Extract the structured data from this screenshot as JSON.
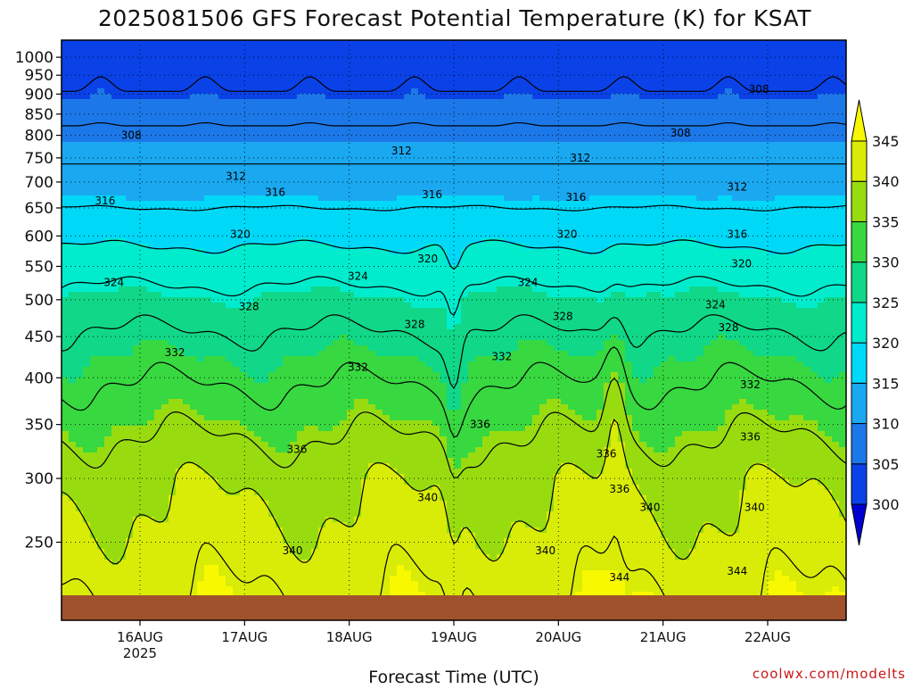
{
  "chart_data": {
    "type": "heatmap",
    "title": "2025081506 GFS Forecast Potential Temperature (K) for KSAT",
    "xlabel": "Forecast Time (UTC)",
    "ylabel": "",
    "watermark": "coolwx.com/modelts",
    "x_ticks": [
      {
        "label": "16AUG",
        "sublabel": "2025",
        "value": 18
      },
      {
        "label": "17AUG",
        "sublabel": "",
        "value": 42
      },
      {
        "label": "18AUG",
        "sublabel": "",
        "value": 66
      },
      {
        "label": "19AUG",
        "sublabel": "",
        "value": 90
      },
      {
        "label": "20AUG",
        "sublabel": "",
        "value": 114
      },
      {
        "label": "21AUG",
        "sublabel": "",
        "value": 138
      },
      {
        "label": "22AUG",
        "sublabel": "",
        "value": 162
      }
    ],
    "xlim": [
      0,
      180
    ],
    "y_axis": {
      "scale": "log",
      "reversed": true,
      "units": "hPa",
      "range": [
        1050,
        200
      ]
    },
    "y_ticks": [
      250,
      300,
      350,
      400,
      450,
      500,
      550,
      600,
      650,
      700,
      750,
      800,
      850,
      900,
      950,
      1000
    ],
    "grid": true,
    "colorbar": {
      "levels": [
        300,
        305,
        310,
        315,
        320,
        325,
        330,
        335,
        340,
        345
      ],
      "colors": [
        "#0000d0",
        "#0a42e8",
        "#1c78e8",
        "#1aa8f0",
        "#00d8f8",
        "#00eccc",
        "#10d888",
        "#38d840",
        "#98dc10",
        "#d8ec08",
        "#f8f800"
      ],
      "extend": "both"
    },
    "ground_color": "#a0522d",
    "profile": {
      "pressure": [
        1000,
        950,
        900,
        850,
        800,
        750,
        700,
        650,
        600,
        550,
        500,
        450,
        400,
        350,
        300,
        250,
        200
      ],
      "theta": [
        304,
        305,
        306,
        307.5,
        309.5,
        311.5,
        313.5,
        316,
        319,
        322,
        325.5,
        328.5,
        331.5,
        335,
        339,
        341.5,
        345
      ]
    },
    "contour_levels": [
      304,
      308,
      312,
      316,
      320,
      324,
      328,
      332,
      336,
      340,
      344
    ],
    "contour_labels": [
      {
        "text": "344",
        "t": 128,
        "p": 226
      },
      {
        "text": "344",
        "t": 155,
        "p": 230
      },
      {
        "text": "340",
        "t": 53,
        "p": 244
      },
      {
        "text": "340",
        "t": 111,
        "p": 244
      },
      {
        "text": "340",
        "t": 84,
        "p": 284
      },
      {
        "text": "340",
        "t": 135,
        "p": 276
      },
      {
        "text": "340",
        "t": 159,
        "p": 276
      },
      {
        "text": "336",
        "t": 128,
        "p": 291
      },
      {
        "text": "336",
        "t": 54,
        "p": 326
      },
      {
        "text": "336",
        "t": 125,
        "p": 322
      },
      {
        "text": "336",
        "t": 96,
        "p": 350
      },
      {
        "text": "336",
        "t": 158,
        "p": 338
      },
      {
        "text": "332",
        "t": 26,
        "p": 430
      },
      {
        "text": "332",
        "t": 68,
        "p": 412
      },
      {
        "text": "332",
        "t": 101,
        "p": 425
      },
      {
        "text": "332",
        "t": 158,
        "p": 392
      },
      {
        "text": "328",
        "t": 43,
        "p": 490
      },
      {
        "text": "328",
        "t": 81,
        "p": 466
      },
      {
        "text": "328",
        "t": 115,
        "p": 477
      },
      {
        "text": "328",
        "t": 153,
        "p": 462
      },
      {
        "text": "324",
        "t": 12,
        "p": 525
      },
      {
        "text": "324",
        "t": 68,
        "p": 535
      },
      {
        "text": "324",
        "t": 107,
        "p": 525
      },
      {
        "text": "324",
        "t": 150,
        "p": 493
      },
      {
        "text": "320",
        "t": 41,
        "p": 603
      },
      {
        "text": "320",
        "t": 84,
        "p": 562
      },
      {
        "text": "320",
        "t": 116,
        "p": 603
      },
      {
        "text": "320",
        "t": 156,
        "p": 554
      },
      {
        "text": "316",
        "t": 10,
        "p": 663
      },
      {
        "text": "316",
        "t": 49,
        "p": 680
      },
      {
        "text": "316",
        "t": 85,
        "p": 675
      },
      {
        "text": "316",
        "t": 118,
        "p": 670
      },
      {
        "text": "316",
        "t": 155,
        "p": 603
      },
      {
        "text": "312",
        "t": 40,
        "p": 712
      },
      {
        "text": "312",
        "t": 78,
        "p": 765
      },
      {
        "text": "312",
        "t": 119,
        "p": 750
      },
      {
        "text": "312",
        "t": 155,
        "p": 690
      },
      {
        "text": "308",
        "t": 16,
        "p": 800
      },
      {
        "text": "308",
        "t": 142,
        "p": 805
      },
      {
        "text": "308",
        "t": 160,
        "p": 912
      }
    ]
  }
}
